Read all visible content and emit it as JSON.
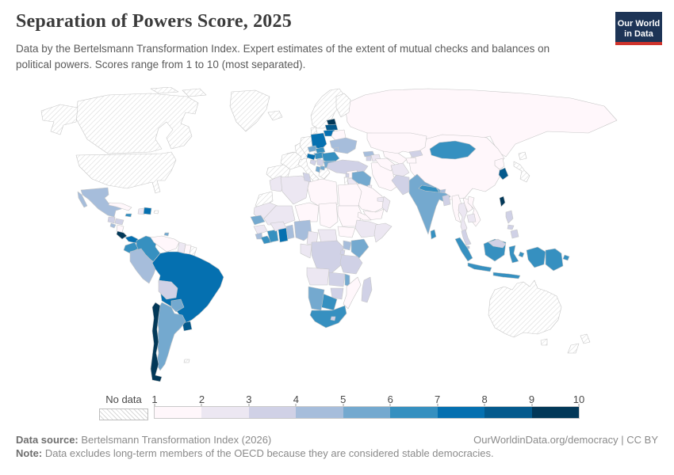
{
  "header": {
    "title": "Separation of Powers Score, 2025",
    "subtitle": "Data by the Bertelsmann Transformation Index. Expert estimates of the extent of mutual checks and balances on political powers. Scores range from 1 to 10 (most separated)."
  },
  "logo": {
    "line1": "Our World",
    "line2": "in Data"
  },
  "colors": {
    "logo_bg": "#1d3456",
    "logo_accent": "#d0342c",
    "map_border": "#c6c6c6",
    "hatch_line": "#d8d8d8",
    "title_text": "#3b3b3b",
    "body_text": "#5b5b5b",
    "footer_text": "#8a8a8a"
  },
  "legend": {
    "no_data_label": "No data",
    "tick_labels": [
      "1",
      "2",
      "3",
      "4",
      "5",
      "6",
      "7",
      "8",
      "9",
      "10"
    ],
    "bin_colors": [
      "#fff7fb",
      "#ece7f2",
      "#d0d1e6",
      "#a6bddb",
      "#74a9cf",
      "#3690c0",
      "#0570b0",
      "#045a8d",
      "#023858"
    ]
  },
  "footer": {
    "source_label": "Data source:",
    "source_text": " Bertelsmann Transformation Index (2026)",
    "link_text": "OurWorldinData.org/democracy | CC BY",
    "note_label": "Note:",
    "note_text": " Data excludes long-term members of the OECD because they are considered stable democracies."
  },
  "chart_data": {
    "type": "heatmap",
    "title": "Separation of Powers Score, 2025",
    "unit": "score (1–10, most separated)",
    "scale_range": [
      1,
      10
    ],
    "legend_bins": [
      1,
      2,
      3,
      4,
      5,
      6,
      7,
      8,
      9,
      10
    ],
    "countries": {
      "Russia": 1.5,
      "China": 1.5,
      "Belarus": 1.5,
      "Kazakhstan": 1.5,
      "Uzbekistan": 1.5,
      "Turkmenistan": 1.5,
      "Tajikistan": 1.5,
      "Iran": 1.5,
      "Saudi Arabia": 1.5,
      "Yemen": 1.5,
      "Syria": 1.5,
      "Libya": 1.5,
      "Egypt": 1.5,
      "Niger": 1.5,
      "Chad": 1.5,
      "Sudan": 1.5,
      "South Sudan": 1.5,
      "Eritrea": 1.5,
      "Mozambique": 1.5,
      "Myanmar": 1.5,
      "Laos": 1.5,
      "Vietnam": 1.5,
      "North Korea": 1.5,
      "Cuba": 1.5,
      "Nicaragua": 1.5,
      "Venezuela": 1.5,
      "Suriname": 1.5,
      "Morocco": 2.5,
      "Algeria": 2.5,
      "Mauritania": 2.5,
      "Mali": 2.5,
      "Guinea": 2.5,
      "Burkina Faso": 2.5,
      "Cameroon": 2.5,
      "Central African Republic": 2.5,
      "Congo": 2.5,
      "Angola": 2.5,
      "Ethiopia": 2.5,
      "Somalia": 2.5,
      "Jordan": 2.5,
      "Oman": 2.5,
      "United Arab Emirates": 2.5,
      "Kuwait": 2.5,
      "Azerbaijan": 2.5,
      "Afghanistan": 2.5,
      "Thailand": 2.5,
      "Cambodia": 2.5,
      "Haiti": 2.5,
      "Guyana": 2.5,
      "Tunisia": 3.5,
      "Turkey": 3.5,
      "Lebanon": 3.5,
      "Armenia": 3.5,
      "Kyrgyzstan": 3.5,
      "Pakistan": 3.5,
      "Bangladesh": 3.5,
      "Malaysia": 3.5,
      "Philippines": 3.5,
      "Democratic Republic of Congo": 3.5,
      "Rwanda": 3.5,
      "Tanzania": 3.5,
      "Zambia": 3.5,
      "Zimbabwe": 3.5,
      "Lesotho": 3.5,
      "Madagascar": 3.5,
      "Bolivia": 3.5,
      "Guatemala": 3.5,
      "Honduras": 3.5,
      "Serbia": 3.5,
      "Bosnia and Herzegovina": 3.5,
      "Mexico": 4.5,
      "Peru": 4.5,
      "El Salvador": 4.5,
      "Sierra Leone": 4.5,
      "Nigeria": 4.5,
      "Benin": 4.5,
      "Uganda": 4.5,
      "Ukraine": 4.5,
      "Moldova": 4.5,
      "Georgia": 4.5,
      "Bhutan": 4.5,
      "Singapore": 4.5,
      "Argentina": 5.5,
      "Paraguay": 5.5,
      "Trinidad and Tobago": 5.5,
      "Senegal": 5.5,
      "Kenya": 5.5,
      "Malawi": 5.5,
      "Namibia": 5.5,
      "India": 5.5,
      "Iraq": 5.5,
      "Czechia": 5.5,
      "Bulgaria": 5.5,
      "Albania": 5.5,
      "North Macedonia": 5.5,
      "Colombia": 6.5,
      "Ecuador": 6.5,
      "Botswana": 6.5,
      "South Africa": 6.5,
      "Côte d'Ivoire": 6.5,
      "Liberia": 6.5,
      "Mongolia": 6.5,
      "Indonesia": 6.5,
      "Papua New Guinea": 6.5,
      "Nepal": 6.5,
      "Sri Lanka": 6.5,
      "Romania": 6.5,
      "Hungary": 6.5,
      "Slovakia": 6.5,
      "Jamaica": 6.5,
      "Brazil": 7.5,
      "Panama": 7.5,
      "Dominican Republic": 7.5,
      "Ghana": 7.5,
      "Poland": 7.5,
      "Croatia": 7.5,
      "Lithuania": 7.5,
      "Uruguay": 8.5,
      "Latvia": 8.5,
      "South Korea": 8.5,
      "Chile": 9.5,
      "Costa Rica": 9.5,
      "Estonia": 9.5,
      "Taiwan": 9.5
    },
    "no_data_regions": [
      "United States",
      "Canada",
      "Greenland",
      "Iceland",
      "United Kingdom",
      "Ireland",
      "Norway",
      "Sweden",
      "Finland",
      "Denmark",
      "Germany",
      "France",
      "Spain",
      "Portugal",
      "Italy",
      "Switzerland",
      "Austria",
      "Greece",
      "Slovenia",
      "Japan",
      "Australia",
      "New Zealand",
      "Israel",
      "Western Sahara",
      "French Guiana",
      "Puerto Rico",
      "Falkland Islands"
    ]
  }
}
